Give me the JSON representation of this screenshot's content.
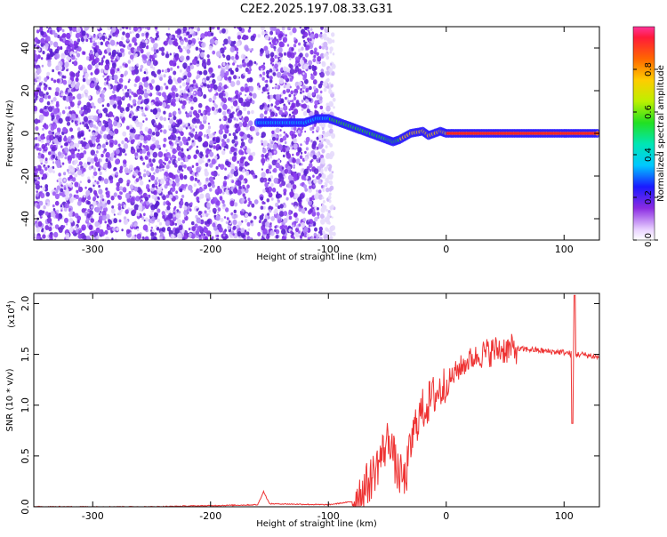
{
  "title": "C2E2.2025.197.08.33.G31",
  "chart_data": [
    {
      "type": "heatmap",
      "xlabel": "Height of straight line (km)",
      "ylabel": "Frequency (Hz)",
      "xlim": [
        -350,
        130
      ],
      "ylim": [
        -50,
        50
      ],
      "x_ticks": [
        -300,
        -200,
        -100,
        0,
        100
      ],
      "y_ticks": [
        -40,
        -20,
        0,
        20,
        40
      ],
      "colorbar": {
        "label": "Normalized spectral amplitude",
        "ticks": [
          0.0,
          0.2,
          0.4,
          0.6,
          0.8
        ],
        "range": [
          0,
          1
        ]
      },
      "signal_track": [
        {
          "x": -160,
          "y": 5
        },
        {
          "x": -140,
          "y": 5
        },
        {
          "x": -120,
          "y": 5
        },
        {
          "x": -110,
          "y": 7
        },
        {
          "x": -100,
          "y": 7
        },
        {
          "x": -90,
          "y": 5
        },
        {
          "x": -80,
          "y": 3
        },
        {
          "x": -70,
          "y": 1
        },
        {
          "x": -60,
          "y": -1
        },
        {
          "x": -50,
          "y": -3
        },
        {
          "x": -45,
          "y": -4
        },
        {
          "x": -40,
          "y": -3
        },
        {
          "x": -30,
          "y": 0
        },
        {
          "x": -20,
          "y": 1
        },
        {
          "x": -15,
          "y": -1
        },
        {
          "x": -5,
          "y": 1
        },
        {
          "x": 0,
          "y": 0
        },
        {
          "x": 50,
          "y": 0
        },
        {
          "x": 100,
          "y": 0
        },
        {
          "x": 130,
          "y": 0
        }
      ]
    },
    {
      "type": "line",
      "xlabel": "Height of straight line (km)",
      "ylabel": "SNR (10 * v/v)",
      "multiplier": "(x10",
      "multiplier_exp": "4",
      "xlim": [
        -350,
        130
      ],
      "ylim": [
        0,
        2.1
      ],
      "x_ticks": [
        -300,
        -200,
        -100,
        0,
        100
      ],
      "y_ticks": [
        "0.0",
        "0.5",
        "1.0",
        "1.5",
        "2.0"
      ],
      "series": [
        {
          "color": "#ee3333",
          "points": [
            {
              "x": -350,
              "y": 0.0
            },
            {
              "x": -250,
              "y": 0.0
            },
            {
              "x": -160,
              "y": 0.02
            },
            {
              "x": -155,
              "y": 0.15
            },
            {
              "x": -150,
              "y": 0.03
            },
            {
              "x": -100,
              "y": 0.02
            },
            {
              "x": -80,
              "y": 0.05
            },
            {
              "x": -65,
              "y": 0.25
            },
            {
              "x": -55,
              "y": 0.5
            },
            {
              "x": -48,
              "y": 0.7
            },
            {
              "x": -42,
              "y": 0.35
            },
            {
              "x": -35,
              "y": 0.25
            },
            {
              "x": -30,
              "y": 0.6
            },
            {
              "x": -25,
              "y": 0.85
            },
            {
              "x": -20,
              "y": 0.95
            },
            {
              "x": -10,
              "y": 1.1
            },
            {
              "x": 0,
              "y": 1.2
            },
            {
              "x": 10,
              "y": 1.35
            },
            {
              "x": 20,
              "y": 1.45
            },
            {
              "x": 30,
              "y": 1.5
            },
            {
              "x": 45,
              "y": 1.55
            },
            {
              "x": 55,
              "y": 1.55
            },
            {
              "x": 70,
              "y": 1.55
            },
            {
              "x": 85,
              "y": 1.53
            },
            {
              "x": 100,
              "y": 1.52
            },
            {
              "x": 108,
              "y": 1.5
            },
            {
              "x": 115,
              "y": 1.5
            },
            {
              "x": 130,
              "y": 1.47
            }
          ]
        }
      ]
    }
  ]
}
